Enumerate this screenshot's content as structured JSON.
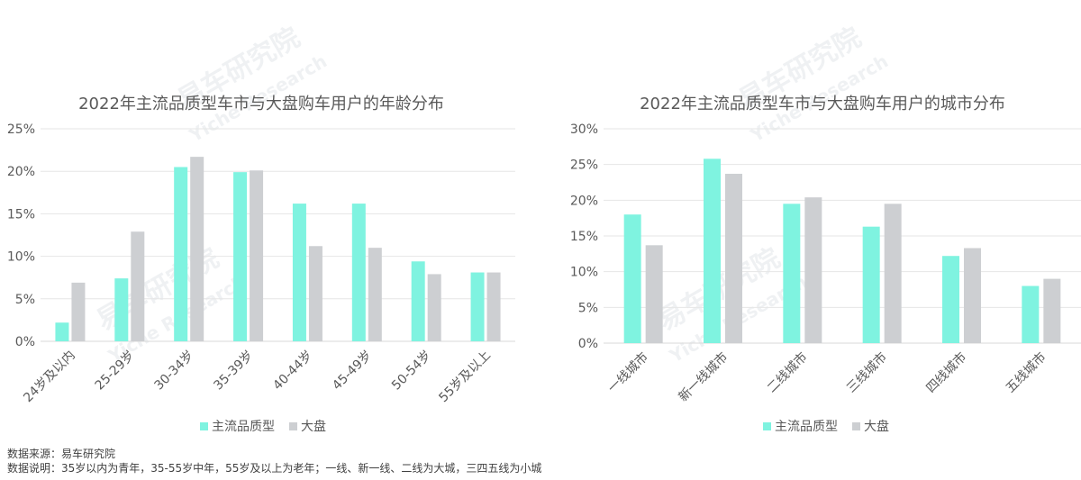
{
  "charts_style": {
    "primary_color": "#7ff3e0",
    "secondary_color": "#cdcfd2",
    "axis_text_color": "#595959",
    "grid_color": "#e6e6e6"
  },
  "chart_data": [
    {
      "type": "bar",
      "title": "2022年主流品质型车市与大盘购车用户的年龄分布",
      "categories": [
        "24岁及以内",
        "25-29岁",
        "30-34岁",
        "35-39岁",
        "40-44岁",
        "45-49岁",
        "50-54岁",
        "55岁及以上"
      ],
      "series": [
        {
          "name": "主流品质型",
          "values": [
            2.2,
            7.4,
            20.5,
            19.9,
            16.2,
            16.2,
            9.4,
            8.1
          ]
        },
        {
          "name": "大盘",
          "values": [
            6.9,
            12.9,
            21.7,
            20.1,
            11.2,
            11.0,
            7.9,
            8.1
          ]
        }
      ],
      "ylim": [
        0,
        25
      ],
      "yticks": [
        "0%",
        "5%",
        "10%",
        "15%",
        "20%",
        "25%"
      ],
      "grid": true,
      "legend": "bottom-center"
    },
    {
      "type": "bar",
      "title": "2022年主流品质型车市与大盘购车用户的城市分布",
      "categories": [
        "一线城市",
        "新一线城市",
        "二线城市",
        "三线城市",
        "四线城市",
        "五线城市"
      ],
      "series": [
        {
          "name": "主流品质型",
          "values": [
            18.0,
            25.8,
            19.5,
            16.3,
            12.2,
            8.0
          ]
        },
        {
          "name": "大盘",
          "values": [
            13.7,
            23.7,
            20.4,
            19.5,
            13.3,
            9.0
          ]
        }
      ],
      "ylim": [
        0,
        30
      ],
      "yticks": [
        "0%",
        "5%",
        "10%",
        "15%",
        "20%",
        "25%",
        "30%"
      ],
      "grid": true,
      "legend": "bottom-center"
    }
  ],
  "watermark": {
    "cn": "易车研究院",
    "en": "Yiche Research"
  },
  "footer": {
    "source": "数据来源：易车研究院",
    "note": "数据说明：35岁以内为青年，35-55岁中年，55岁及以上为老年；一线、新一线、二线为大城，三四五线为小城"
  }
}
